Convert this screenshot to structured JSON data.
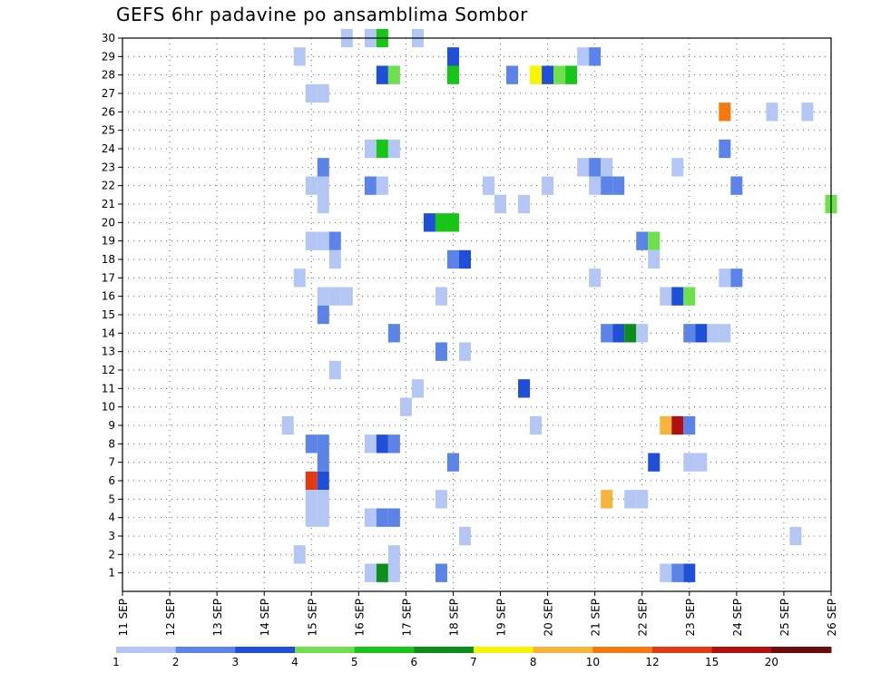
{
  "chart_data": {
    "type": "heatmap",
    "title": "GEFS 6hr padavine po ansamblima Sombor",
    "xlabel": "",
    "ylabel": "",
    "x_tick_labels": [
      "11 SEP",
      "12 SEP",
      "13 SEP",
      "14 SEP",
      "15 SEP",
      "16 SEP",
      "17 SEP",
      "18 SEP",
      "19 SEP",
      "20 SEP",
      "21 SEP",
      "22 SEP",
      "23 SEP",
      "24 SEP",
      "25 SEP",
      "26 SEP"
    ],
    "y_tick_labels": [
      "1",
      "2",
      "3",
      "4",
      "5",
      "6",
      "7",
      "8",
      "9",
      "10",
      "11",
      "12",
      "13",
      "14",
      "15",
      "16",
      "17",
      "18",
      "19",
      "20",
      "21",
      "22",
      "23",
      "24",
      "25",
      "26",
      "27",
      "28",
      "29",
      "30"
    ],
    "x_range_days": [
      11,
      26
    ],
    "y_range": [
      0,
      30
    ],
    "grid": true,
    "legend_labels": [
      "1",
      "2",
      "3",
      "4",
      "5",
      "6",
      "7",
      "8",
      "10",
      "12",
      "15",
      "20"
    ],
    "legend_colors": [
      "#b3c6f4",
      "#5b83e8",
      "#1f4fd6",
      "#6ee04e",
      "#17c517",
      "#0b8f18",
      "#f5f500",
      "#f7b43a",
      "#f47a10",
      "#e23a10",
      "#b01010",
      "#6e0b0b"
    ],
    "cells": [
      {
        "day": 15.75,
        "m": 30,
        "c": 1
      },
      {
        "day": 16.25,
        "m": 30,
        "c": 1
      },
      {
        "day": 16.5,
        "m": 30,
        "c": 5
      },
      {
        "day": 17.25,
        "m": 30,
        "c": 1
      },
      {
        "day": 14.75,
        "m": 29,
        "c": 1
      },
      {
        "day": 18,
        "m": 29,
        "c": 3
      },
      {
        "day": 20.75,
        "m": 29,
        "c": 1
      },
      {
        "day": 21,
        "m": 29,
        "c": 2
      },
      {
        "day": 16.5,
        "m": 28,
        "c": 3
      },
      {
        "day": 16.75,
        "m": 28,
        "c": 4
      },
      {
        "day": 18,
        "m": 28,
        "c": 5
      },
      {
        "day": 19.25,
        "m": 28,
        "c": 2
      },
      {
        "day": 19.75,
        "m": 28,
        "c": 7
      },
      {
        "day": 20,
        "m": 28,
        "c": 3
      },
      {
        "day": 20.25,
        "m": 28,
        "c": 4
      },
      {
        "day": 20.5,
        "m": 28,
        "c": 5
      },
      {
        "day": 15,
        "m": 27,
        "c": 1
      },
      {
        "day": 15.25,
        "m": 27,
        "c": 1
      },
      {
        "day": 23.75,
        "m": 26,
        "c": 9
      },
      {
        "day": 24.75,
        "m": 26,
        "c": 1
      },
      {
        "day": 25.5,
        "m": 26,
        "c": 1
      },
      {
        "day": 16.25,
        "m": 24,
        "c": 1
      },
      {
        "day": 16.5,
        "m": 24,
        "c": 5
      },
      {
        "day": 16.75,
        "m": 24,
        "c": 1
      },
      {
        "day": 23.75,
        "m": 24,
        "c": 2
      },
      {
        "day": 15.25,
        "m": 23,
        "c": 2
      },
      {
        "day": 20.75,
        "m": 23,
        "c": 1
      },
      {
        "day": 21,
        "m": 23,
        "c": 2
      },
      {
        "day": 21.25,
        "m": 23,
        "c": 1
      },
      {
        "day": 22.75,
        "m": 23,
        "c": 1
      },
      {
        "day": 15,
        "m": 22,
        "c": 1
      },
      {
        "day": 15.25,
        "m": 22,
        "c": 1
      },
      {
        "day": 16.25,
        "m": 22,
        "c": 2
      },
      {
        "day": 16.5,
        "m": 22,
        "c": 1
      },
      {
        "day": 18.75,
        "m": 22,
        "c": 1
      },
      {
        "day": 20,
        "m": 22,
        "c": 1
      },
      {
        "day": 21,
        "m": 22,
        "c": 1
      },
      {
        "day": 21.25,
        "m": 22,
        "c": 2
      },
      {
        "day": 21.5,
        "m": 22,
        "c": 2
      },
      {
        "day": 24,
        "m": 22,
        "c": 2
      },
      {
        "day": 15.25,
        "m": 21,
        "c": 1
      },
      {
        "day": 19,
        "m": 21,
        "c": 1
      },
      {
        "day": 19.5,
        "m": 21,
        "c": 1
      },
      {
        "day": 26,
        "m": 21,
        "c": 4
      },
      {
        "day": 17.5,
        "m": 20,
        "c": 3
      },
      {
        "day": 17.75,
        "m": 20,
        "c": 5
      },
      {
        "day": 18,
        "m": 20,
        "c": 5
      },
      {
        "day": 15,
        "m": 19,
        "c": 1
      },
      {
        "day": 15.25,
        "m": 19,
        "c": 1
      },
      {
        "day": 15.5,
        "m": 19,
        "c": 2
      },
      {
        "day": 22,
        "m": 19,
        "c": 2
      },
      {
        "day": 22.25,
        "m": 19,
        "c": 4
      },
      {
        "day": 15.5,
        "m": 18,
        "c": 1
      },
      {
        "day": 18,
        "m": 18,
        "c": 2
      },
      {
        "day": 18.25,
        "m": 18,
        "c": 3
      },
      {
        "day": 22.25,
        "m": 18,
        "c": 1
      },
      {
        "day": 14.75,
        "m": 17,
        "c": 1
      },
      {
        "day": 21,
        "m": 17,
        "c": 1
      },
      {
        "day": 23.75,
        "m": 17,
        "c": 1
      },
      {
        "day": 24,
        "m": 17,
        "c": 2
      },
      {
        "day": 15.25,
        "m": 16,
        "c": 1
      },
      {
        "day": 15.5,
        "m": 16,
        "c": 1
      },
      {
        "day": 15.75,
        "m": 16,
        "c": 1
      },
      {
        "day": 17.75,
        "m": 16,
        "c": 1
      },
      {
        "day": 22.5,
        "m": 16,
        "c": 1
      },
      {
        "day": 22.75,
        "m": 16,
        "c": 3
      },
      {
        "day": 23,
        "m": 16,
        "c": 4
      },
      {
        "day": 15.25,
        "m": 15,
        "c": 2
      },
      {
        "day": 16.75,
        "m": 14,
        "c": 2
      },
      {
        "day": 21.25,
        "m": 14,
        "c": 2
      },
      {
        "day": 21.5,
        "m": 14,
        "c": 3
      },
      {
        "day": 21.75,
        "m": 14,
        "c": 6
      },
      {
        "day": 22,
        "m": 14,
        "c": 1
      },
      {
        "day": 23,
        "m": 14,
        "c": 2
      },
      {
        "day": 23.25,
        "m": 14,
        "c": 3
      },
      {
        "day": 23.5,
        "m": 14,
        "c": 1
      },
      {
        "day": 23.75,
        "m": 14,
        "c": 1
      },
      {
        "day": 17.75,
        "m": 13,
        "c": 2
      },
      {
        "day": 18.25,
        "m": 13,
        "c": 1
      },
      {
        "day": 15.5,
        "m": 12,
        "c": 1
      },
      {
        "day": 17.25,
        "m": 11,
        "c": 1
      },
      {
        "day": 19.5,
        "m": 11,
        "c": 3
      },
      {
        "day": 17,
        "m": 10,
        "c": 1
      },
      {
        "day": 14.5,
        "m": 9,
        "c": 1
      },
      {
        "day": 19.75,
        "m": 9,
        "c": 1
      },
      {
        "day": 22.5,
        "m": 9,
        "c": 8
      },
      {
        "day": 22.75,
        "m": 9,
        "c": 11
      },
      {
        "day": 23,
        "m": 9,
        "c": 2
      },
      {
        "day": 15,
        "m": 8,
        "c": 2
      },
      {
        "day": 15.25,
        "m": 8,
        "c": 2
      },
      {
        "day": 16.25,
        "m": 8,
        "c": 1
      },
      {
        "day": 16.5,
        "m": 8,
        "c": 3
      },
      {
        "day": 16.75,
        "m": 8,
        "c": 2
      },
      {
        "day": 15.25,
        "m": 7,
        "c": 2
      },
      {
        "day": 18,
        "m": 7,
        "c": 2
      },
      {
        "day": 22.25,
        "m": 7,
        "c": 3
      },
      {
        "day": 23,
        "m": 7,
        "c": 1
      },
      {
        "day": 23.25,
        "m": 7,
        "c": 1
      },
      {
        "day": 15,
        "m": 6,
        "c": 10
      },
      {
        "day": 15.25,
        "m": 6,
        "c": 3
      },
      {
        "day": 15,
        "m": 5,
        "c": 1
      },
      {
        "day": 15.25,
        "m": 5,
        "c": 1
      },
      {
        "day": 17.75,
        "m": 5,
        "c": 1
      },
      {
        "day": 21.25,
        "m": 5,
        "c": 8
      },
      {
        "day": 21.75,
        "m": 5,
        "c": 1
      },
      {
        "day": 22,
        "m": 5,
        "c": 1
      },
      {
        "day": 15,
        "m": 4,
        "c": 1
      },
      {
        "day": 15.25,
        "m": 4,
        "c": 1
      },
      {
        "day": 16.25,
        "m": 4,
        "c": 1
      },
      {
        "day": 16.5,
        "m": 4,
        "c": 2
      },
      {
        "day": 16.75,
        "m": 4,
        "c": 2
      },
      {
        "day": 18.25,
        "m": 3,
        "c": 1
      },
      {
        "day": 25.25,
        "m": 3,
        "c": 1
      },
      {
        "day": 14.75,
        "m": 2,
        "c": 1
      },
      {
        "day": 16.75,
        "m": 2,
        "c": 1
      },
      {
        "day": 16.25,
        "m": 1,
        "c": 1
      },
      {
        "day": 16.5,
        "m": 1,
        "c": 6
      },
      {
        "day": 16.75,
        "m": 1,
        "c": 1
      },
      {
        "day": 17.75,
        "m": 1,
        "c": 2
      },
      {
        "day": 22.5,
        "m": 1,
        "c": 1
      },
      {
        "day": 22.75,
        "m": 1,
        "c": 2
      },
      {
        "day": 23,
        "m": 1,
        "c": 3
      }
    ]
  }
}
